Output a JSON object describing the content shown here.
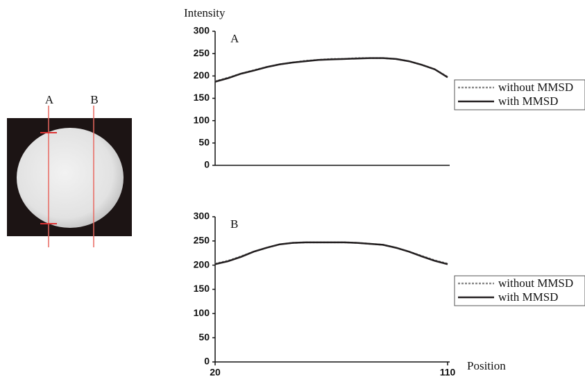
{
  "image": {
    "labels": [
      "A",
      "B"
    ]
  },
  "chart_data": [
    {
      "type": "line",
      "ylabel": "Intensity",
      "panel_label": "A",
      "xlim": [
        20,
        110
      ],
      "ylim": [
        0,
        300
      ],
      "yticks": [
        0,
        50,
        100,
        150,
        200,
        250,
        300
      ],
      "legend": "right",
      "x": [
        20,
        25,
        30,
        35,
        40,
        45,
        50,
        55,
        60,
        65,
        70,
        75,
        80,
        85,
        90,
        95,
        100,
        105,
        110
      ],
      "series": [
        {
          "name": "without MMSD",
          "color": "#8a8a8a",
          "dash": "dotted",
          "values": [
            188,
            196,
            205,
            213,
            220,
            226,
            230,
            234,
            236,
            238,
            238,
            240,
            240,
            240,
            238,
            233,
            225,
            215,
            198
          ]
        },
        {
          "name": "with MMSD",
          "color": "#231f20",
          "dash": "solid",
          "values": [
            187,
            195,
            205,
            212,
            220,
            226,
            230,
            233,
            236,
            237,
            238,
            239,
            240,
            240,
            238,
            233,
            225,
            215,
            197
          ]
        }
      ]
    },
    {
      "type": "line",
      "panel_label": "B",
      "xlabel": "Position",
      "xlim": [
        20,
        110
      ],
      "xticks": [
        20,
        110
      ],
      "ylim": [
        0,
        300
      ],
      "yticks": [
        0,
        50,
        100,
        150,
        200,
        250,
        300
      ],
      "legend": "right",
      "x": [
        20,
        25,
        30,
        35,
        40,
        45,
        50,
        55,
        60,
        65,
        70,
        75,
        80,
        85,
        90,
        95,
        100,
        105,
        110
      ],
      "series": [
        {
          "name": "without MMSD",
          "color": "#8a8a8a",
          "dash": "dotted",
          "values": [
            203,
            209,
            218,
            228,
            236,
            243,
            246,
            247,
            247,
            247,
            247,
            246,
            244,
            242,
            236,
            228,
            219,
            210,
            203
          ]
        },
        {
          "name": "with MMSD",
          "color": "#231f20",
          "dash": "solid",
          "values": [
            202,
            208,
            217,
            228,
            236,
            243,
            246,
            247,
            247,
            247,
            247,
            246,
            244,
            242,
            236,
            228,
            218,
            209,
            202
          ]
        }
      ]
    }
  ]
}
